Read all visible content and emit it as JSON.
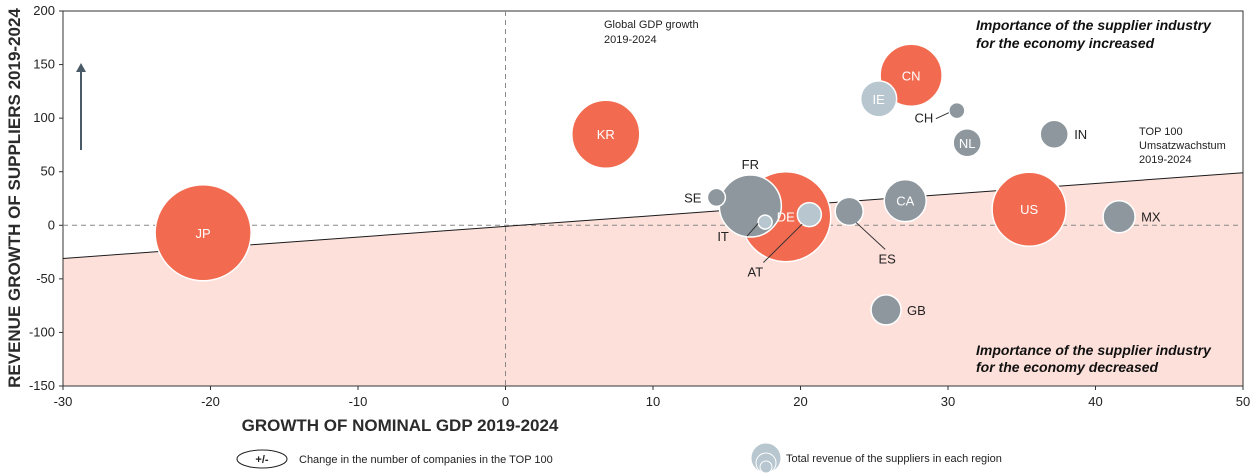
{
  "chart_data": {
    "type": "scatter",
    "xlabel": "GROWTH OF NOMINAL GDP 2019-2024",
    "ylabel": "REVENUE GROWTH OF SUPPLIERS 2019-2024",
    "xlim": [
      -30,
      50
    ],
    "ylim": [
      -150,
      200
    ],
    "xticks": [
      -30,
      -20,
      -10,
      0,
      10,
      20,
      30,
      40,
      50
    ],
    "xtick_labels": [
      "-30",
      "-20",
      "-10",
      "0",
      "10",
      "20",
      "30",
      "40",
      "50"
    ],
    "yticks": [
      200,
      150,
      100,
      50,
      0,
      -50,
      -100,
      -150
    ],
    "ytick_labels": [
      "200",
      "150",
      "100",
      "50",
      "0",
      "-50",
      "-100",
      "-150"
    ],
    "grid": false,
    "reference_lines": {
      "vertical_dashed_x": 0,
      "horizontal_dashed_y": 0,
      "trend_line": [
        [
          -30,
          -31
        ],
        [
          50,
          49
        ]
      ]
    },
    "annotations": {
      "global_gdp": [
        "Global GDP growth",
        "2019-2024"
      ],
      "top100": [
        "TOP 100",
        "Umsatzwachstum",
        "2019-2024"
      ],
      "increased": [
        "Importance of the supplier industry",
        "for the economy increased"
      ],
      "decreased": [
        "Importance of the supplier industry",
        "for the economy decreased"
      ]
    },
    "colors": {
      "highlight": "#f26b50",
      "grey": "#8d979d",
      "light": "#b8c6cf",
      "zone": "#fde0da",
      "ring": "#ffffff"
    },
    "points": [
      {
        "label": "JP",
        "x": -20.5,
        "y": -7,
        "size": 48,
        "color": "highlight",
        "label_pos": "inside"
      },
      {
        "label": "KR",
        "x": 6.8,
        "y": 85,
        "size": 34,
        "color": "highlight",
        "label_pos": "inside"
      },
      {
        "label": "CN",
        "x": 27.5,
        "y": 140,
        "size": 31,
        "color": "highlight",
        "label_pos": "inside"
      },
      {
        "label": "IE",
        "x": 25.3,
        "y": 118,
        "size": 18,
        "color": "light",
        "label_pos": "inside"
      },
      {
        "label": "CH",
        "x": 30.6,
        "y": 107,
        "size": 8,
        "color": "grey",
        "label_pos": "left-below"
      },
      {
        "label": "IN",
        "x": 37.2,
        "y": 85,
        "size": 14,
        "color": "grey",
        "label_pos": "right"
      },
      {
        "label": "NL",
        "x": 31.3,
        "y": 77,
        "size": 14,
        "color": "grey",
        "label_pos": "inside"
      },
      {
        "label": "FR",
        "x": 16.6,
        "y": 18,
        "size": 31,
        "color": "grey",
        "label_pos": "above"
      },
      {
        "label": "SE",
        "x": 14.3,
        "y": 26,
        "size": 9,
        "color": "grey",
        "label_pos": "left"
      },
      {
        "label": "DE",
        "x": 19.0,
        "y": 8,
        "size": 45,
        "color": "highlight",
        "label_pos": "inside"
      },
      {
        "label": "IT",
        "x": 17.6,
        "y": 3,
        "size": 7,
        "color": "light",
        "label_pos": "left-below"
      },
      {
        "label": "AT",
        "x": 20.6,
        "y": 10,
        "size": 12,
        "color": "light",
        "label_pos": "below-left"
      },
      {
        "label": "ES",
        "x": 23.3,
        "y": 13,
        "size": 14,
        "color": "grey",
        "label_pos": "below"
      },
      {
        "label": "CA",
        "x": 27.1,
        "y": 23,
        "size": 21,
        "color": "grey",
        "label_pos": "inside"
      },
      {
        "label": "US",
        "x": 35.5,
        "y": 15,
        "size": 37,
        "color": "highlight",
        "label_pos": "inside"
      },
      {
        "label": "MX",
        "x": 41.6,
        "y": 8,
        "size": 16,
        "color": "grey",
        "label_pos": "right"
      },
      {
        "label": "GB",
        "x": 25.8,
        "y": -79,
        "size": 15,
        "color": "grey",
        "label_pos": "right"
      }
    ]
  },
  "legend": {
    "count_symbol": "+/-",
    "count_text": "Change in the number of companies in the TOP 100",
    "revenue_text": "Total revenue of the suppliers in each region"
  }
}
